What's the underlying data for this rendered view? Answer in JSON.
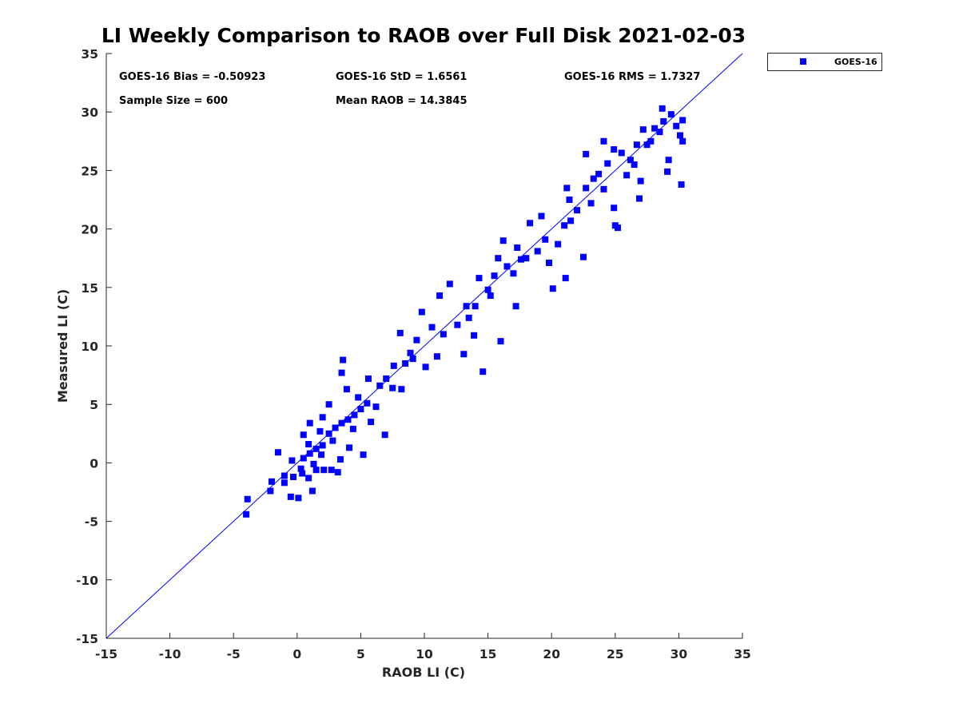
{
  "chart_data": {
    "type": "scatter",
    "title": "LI Weekly Comparison to RAOB over Full Disk 2021-02-03",
    "xlabel": "RAOB LI (C)",
    "ylabel": "Measured LI (C)",
    "xlim": [
      -15,
      35
    ],
    "ylim": [
      -15,
      35
    ],
    "xticks": [
      -15,
      -10,
      -5,
      0,
      5,
      10,
      15,
      20,
      25,
      30,
      35
    ],
    "yticks": [
      -15,
      -10,
      -5,
      0,
      5,
      10,
      15,
      20,
      25,
      30,
      35
    ],
    "grid": false,
    "legend_position": "outside-top-right",
    "reference_line": {
      "type": "one-to-one",
      "from": [
        -15,
        -15
      ],
      "to": [
        35,
        35
      ]
    },
    "stats": {
      "bias": "GOES-16 Bias = -0.50923",
      "std": "GOES-16 StD = 1.6561",
      "rms": "GOES-16 RMS = 1.7327",
      "sample_size": "Sample Size = 600",
      "mean_raob": "Mean RAOB = 14.3845"
    },
    "series": [
      {
        "name": "GOES-16",
        "color": "#0000ff",
        "marker": "square",
        "sample_size": 600,
        "mean_x": 14.3845,
        "bias": -0.50923,
        "std": 1.6561,
        "rms": 1.7327,
        "points_visible": [
          [
            -4,
            -4.4
          ],
          [
            -3.9,
            -3.1
          ],
          [
            -2,
            -1.6
          ],
          [
            -2.1,
            -2.4
          ],
          [
            -1.5,
            0.9
          ],
          [
            -1,
            -1.1
          ],
          [
            -0.5,
            -2.9
          ],
          [
            0.1,
            -3
          ],
          [
            1.2,
            -2.4
          ],
          [
            -1,
            -1.7
          ],
          [
            -0.3,
            -1.2
          ],
          [
            0.4,
            -0.9
          ],
          [
            0.9,
            -1.3
          ],
          [
            1.5,
            -0.6
          ],
          [
            2.1,
            -0.6
          ],
          [
            2.7,
            -0.6
          ],
          [
            3.2,
            -0.8
          ],
          [
            0.5,
            0.4
          ],
          [
            1,
            0.8
          ],
          [
            1.5,
            1.2
          ],
          [
            2,
            1.5
          ],
          [
            2.5,
            2.5
          ],
          [
            3,
            3
          ],
          [
            3.5,
            3.4
          ],
          [
            4,
            3.7
          ],
          [
            4.5,
            4.1
          ],
          [
            5,
            4.6
          ],
          [
            5.5,
            5.1
          ],
          [
            0.5,
            2.4
          ],
          [
            1,
            3.4
          ],
          [
            2,
            3.9
          ],
          [
            2.5,
            5
          ],
          [
            3.5,
            7.7
          ],
          [
            3.6,
            8.8
          ],
          [
            5.6,
            7.2
          ],
          [
            6.5,
            6.6
          ],
          [
            7,
            7.2
          ],
          [
            7.5,
            6.4
          ],
          [
            8.5,
            8.5
          ],
          [
            8.2,
            6.3
          ],
          [
            6.9,
            2.4
          ],
          [
            5.2,
            0.7
          ],
          [
            4.1,
            1.3
          ],
          [
            3.4,
            0.3
          ],
          [
            2.8,
            1.9
          ],
          [
            1.9,
            0.7
          ],
          [
            1.3,
            -0.1
          ],
          [
            0.3,
            -0.5
          ],
          [
            -0.4,
            0.2
          ],
          [
            0.9,
            1.6
          ],
          [
            1.8,
            2.7
          ],
          [
            4.4,
            2.9
          ],
          [
            5.8,
            3.5
          ],
          [
            6.2,
            4.8
          ],
          [
            4.8,
            5.6
          ],
          [
            3.9,
            6.3
          ],
          [
            7.6,
            8.3
          ],
          [
            8.9,
            9.4
          ],
          [
            9.4,
            10.5
          ],
          [
            9.8,
            12.9
          ],
          [
            8.1,
            11.1
          ],
          [
            9.1,
            8.9
          ],
          [
            10.1,
            8.2
          ],
          [
            10.6,
            11.6
          ],
          [
            11,
            9.1
          ],
          [
            11.2,
            14.3
          ],
          [
            11.5,
            11
          ],
          [
            12,
            15.3
          ],
          [
            12.6,
            11.8
          ],
          [
            13.1,
            9.3
          ],
          [
            13.3,
            13.4
          ],
          [
            13.5,
            12.4
          ],
          [
            14,
            13.4
          ],
          [
            14.3,
            15.8
          ],
          [
            13.9,
            10.9
          ],
          [
            14.6,
            7.8
          ],
          [
            15,
            14.8
          ],
          [
            15.2,
            14.3
          ],
          [
            15.5,
            16
          ],
          [
            15.8,
            17.5
          ],
          [
            16,
            10.4
          ],
          [
            16.2,
            19
          ],
          [
            16.5,
            16.8
          ],
          [
            17,
            16.2
          ],
          [
            17.3,
            18.4
          ],
          [
            17.2,
            13.4
          ],
          [
            17.6,
            17.4
          ],
          [
            18,
            17.5
          ],
          [
            18.3,
            20.5
          ],
          [
            18.9,
            18.1
          ],
          [
            19.2,
            21.1
          ],
          [
            19.5,
            19.1
          ],
          [
            19.8,
            17.1
          ],
          [
            20.1,
            14.9
          ],
          [
            20.5,
            18.7
          ],
          [
            21,
            20.3
          ],
          [
            21.1,
            15.8
          ],
          [
            21.4,
            22.5
          ],
          [
            21.5,
            20.7
          ],
          [
            22,
            21.6
          ],
          [
            22.5,
            17.6
          ],
          [
            22.7,
            23.5
          ],
          [
            23.1,
            22.2
          ],
          [
            23.3,
            24.3
          ],
          [
            23.7,
            24.7
          ],
          [
            24.1,
            23.4
          ],
          [
            24.4,
            25.6
          ],
          [
            24.9,
            21.8
          ],
          [
            25.2,
            20.1
          ],
          [
            25,
            20.3
          ],
          [
            25.5,
            26.5
          ],
          [
            25.9,
            24.6
          ],
          [
            26.2,
            25.9
          ],
          [
            26.5,
            25.5
          ],
          [
            26.7,
            27.2
          ],
          [
            27,
            24.1
          ],
          [
            27.2,
            28.5
          ],
          [
            27.5,
            27.2
          ],
          [
            27.8,
            27.5
          ],
          [
            28.1,
            28.6
          ],
          [
            28.5,
            28.3
          ],
          [
            28.8,
            29.2
          ],
          [
            29.2,
            25.9
          ],
          [
            29.1,
            24.9
          ],
          [
            29.8,
            28.8
          ],
          [
            30.1,
            28
          ],
          [
            30.3,
            27.5
          ],
          [
            30.3,
            29.3
          ],
          [
            30.2,
            23.8
          ],
          [
            28.7,
            30.3
          ],
          [
            29.4,
            29.8
          ],
          [
            26.9,
            22.6
          ],
          [
            24.9,
            26.8
          ],
          [
            22.7,
            26.4
          ],
          [
            24.1,
            27.5
          ],
          [
            21.2,
            23.5
          ]
        ]
      }
    ]
  }
}
